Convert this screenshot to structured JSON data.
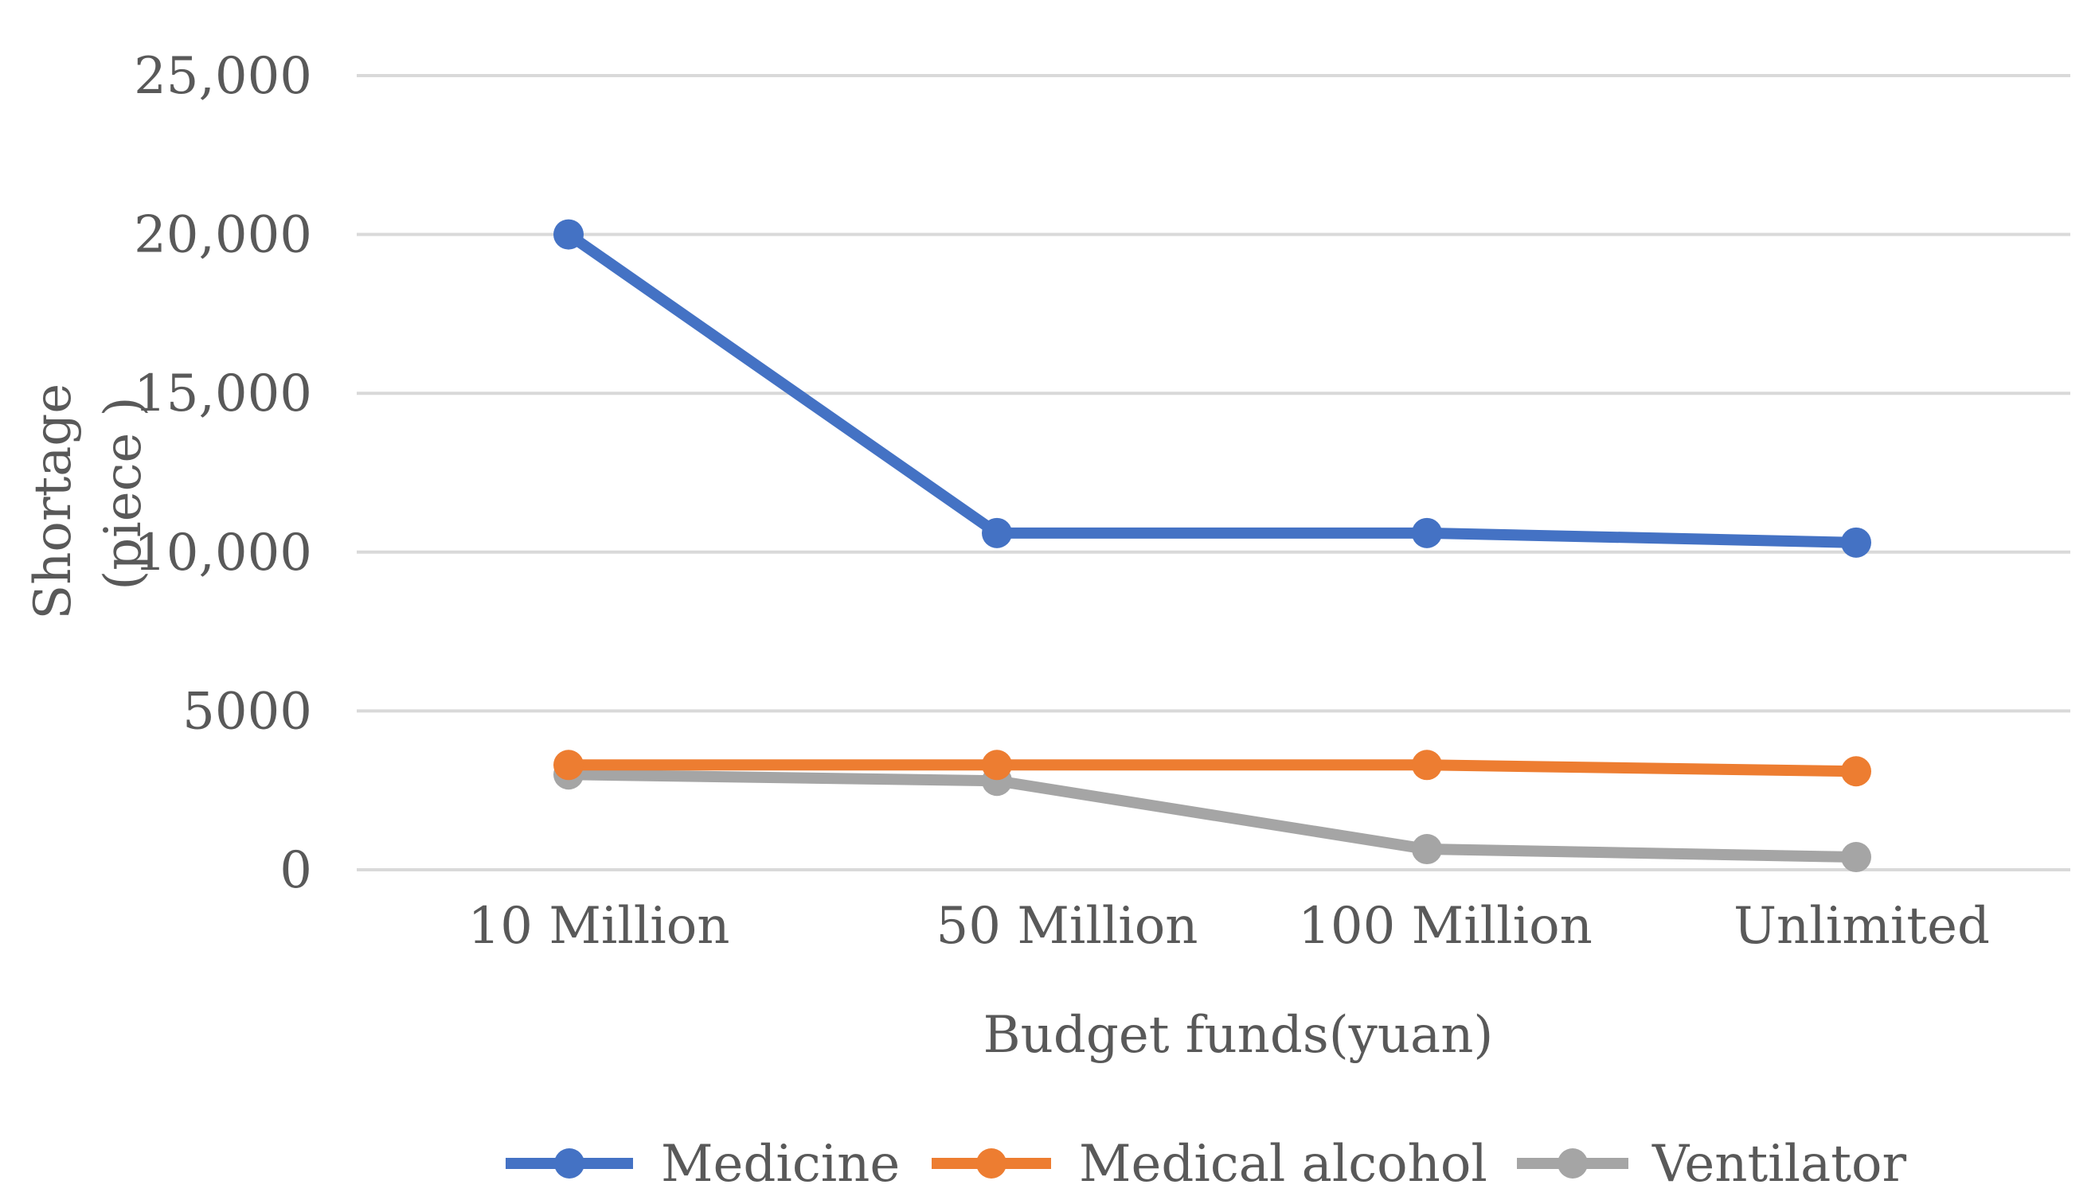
{
  "chart_data": {
    "type": "line",
    "title": "",
    "xlabel": "Budget funds(yuan)",
    "ylabel": "Shortage\n(piece )",
    "ylabel_lines": [
      "Shortage",
      "(piece )"
    ],
    "categories": [
      "10 Million",
      "50 Million",
      "100 Million",
      "Unlimited"
    ],
    "ylim": [
      0,
      25000
    ],
    "yticks": [
      0,
      5000,
      10000,
      15000,
      20000,
      25000
    ],
    "ytick_labels": [
      "0",
      "5000",
      "10,000",
      "15,000",
      "20,000",
      "25,000"
    ],
    "grid": true,
    "legend_position": "bottom",
    "series": [
      {
        "name": "Medicine",
        "color": "#4472c4",
        "values": [
          20000,
          10600,
          10600,
          10300
        ]
      },
      {
        "name": "Medical alcohol",
        "color": "#ed7d31",
        "values": [
          3300,
          3300,
          3300,
          3100
        ]
      },
      {
        "name": "Ventilator",
        "color": "#a5a5a5",
        "values": [
          3000,
          2800,
          650,
          400
        ]
      }
    ]
  }
}
